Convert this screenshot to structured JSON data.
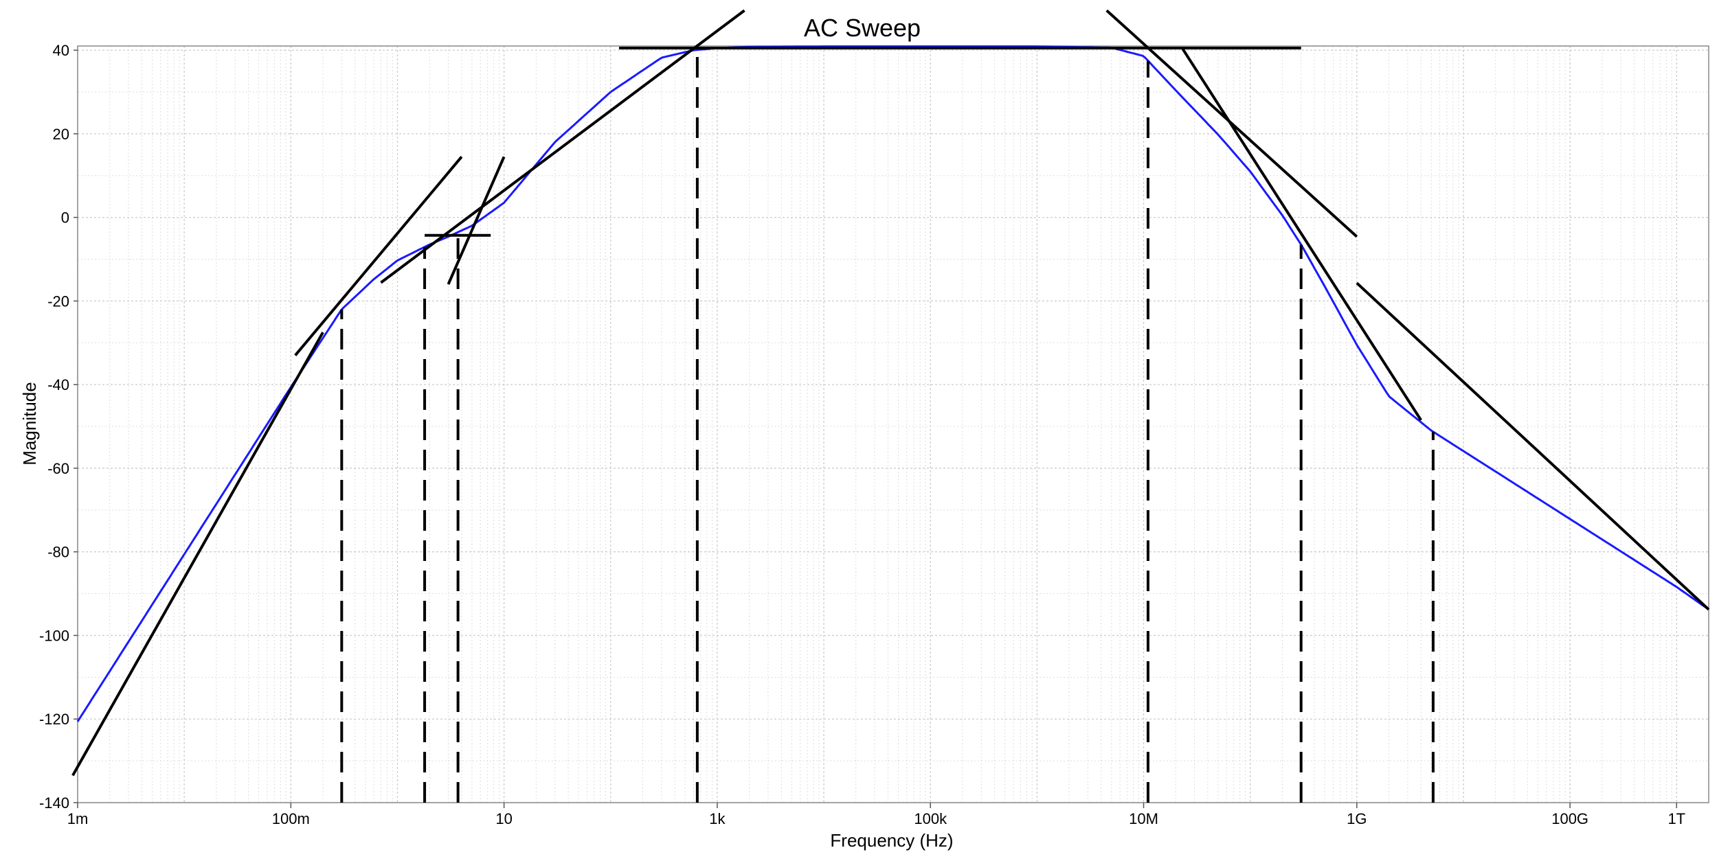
{
  "chart_data": {
    "type": "line",
    "title": "AC Sweep",
    "xlabel": "Frequency (Hz)",
    "ylabel": "Magnitude",
    "x_scale": "log",
    "xlim": [
      0.001,
      2000000000000
    ],
    "ylim": [
      -140,
      41
    ],
    "grid": true,
    "x_ticks": [
      {
        "value": 0.001,
        "label": "1m"
      },
      {
        "value": 0.1,
        "label": "100m"
      },
      {
        "value": 10,
        "label": "10"
      },
      {
        "value": 1000,
        "label": "1k"
      },
      {
        "value": 100000,
        "label": "100k"
      },
      {
        "value": 10000000,
        "label": "10M"
      },
      {
        "value": 1000000000,
        "label": "1G"
      },
      {
        "value": 100000000000,
        "label": "100G"
      },
      {
        "value": 1000000000000,
        "label": "1T"
      }
    ],
    "y_ticks": [
      40,
      20,
      0,
      -20,
      -40,
      -60,
      -80,
      -100,
      -120,
      -140
    ],
    "series": [
      {
        "color": "#1a1aff",
        "x": [
          0.001,
          0.01,
          0.1,
          0.3,
          0.6,
          1,
          2,
          3,
          5,
          10,
          30,
          100,
          300,
          600,
          1000,
          2000,
          10000,
          1000000,
          5000000,
          10000000,
          20000000,
          50000000,
          100000000,
          200000000,
          300000000,
          500000000,
          1000000000,
          2000000000,
          5000000000,
          1000000000000,
          2000000000000
        ],
        "values": [
          -120.6,
          -80.6,
          -40.6,
          -22,
          -14.8,
          -10.3,
          -6.5,
          -4.6,
          -2,
          3.5,
          18,
          30,
          38.2,
          40,
          40.5,
          40.8,
          40.9,
          40.9,
          40.6,
          38.6,
          30.4,
          19.8,
          11,
          0.5,
          -6.5,
          -16.5,
          -30.5,
          -42.8,
          -51,
          -88.4,
          -93.8
        ]
      }
    ],
    "asymptotes": [
      {
        "x": [
          0.0009,
          0.2
        ],
        "y": [
          -133.5,
          -27.5
        ]
      },
      {
        "x": [
          0.11,
          4
        ],
        "y": [
          -33,
          14.5
        ]
      },
      {
        "x": [
          3,
          10
        ],
        "y": [
          -16,
          14.5
        ]
      },
      {
        "x": [
          1.8,
          7.5
        ],
        "y": [
          -4.3,
          -4.3
        ]
      },
      {
        "x": [
          120,
          300000000
        ],
        "y": [
          40.5,
          40.5
        ]
      },
      {
        "x": [
          0.7,
          1800
        ],
        "y": [
          -15.6,
          49.5
        ]
      },
      {
        "x": [
          4500000,
          1000000000
        ],
        "y": [
          49.5,
          -4.6
        ]
      },
      {
        "x": [
          23000000,
          4000000000
        ],
        "y": [
          40.5,
          -48.5
        ]
      },
      {
        "x": [
          1000000000,
          2000000000000
        ],
        "y": [
          -15.7,
          -93.8
        ]
      }
    ],
    "markers": [
      0.3,
      1.8,
      3.7,
      650,
      11000000,
      300000000,
      5200000000
    ]
  }
}
